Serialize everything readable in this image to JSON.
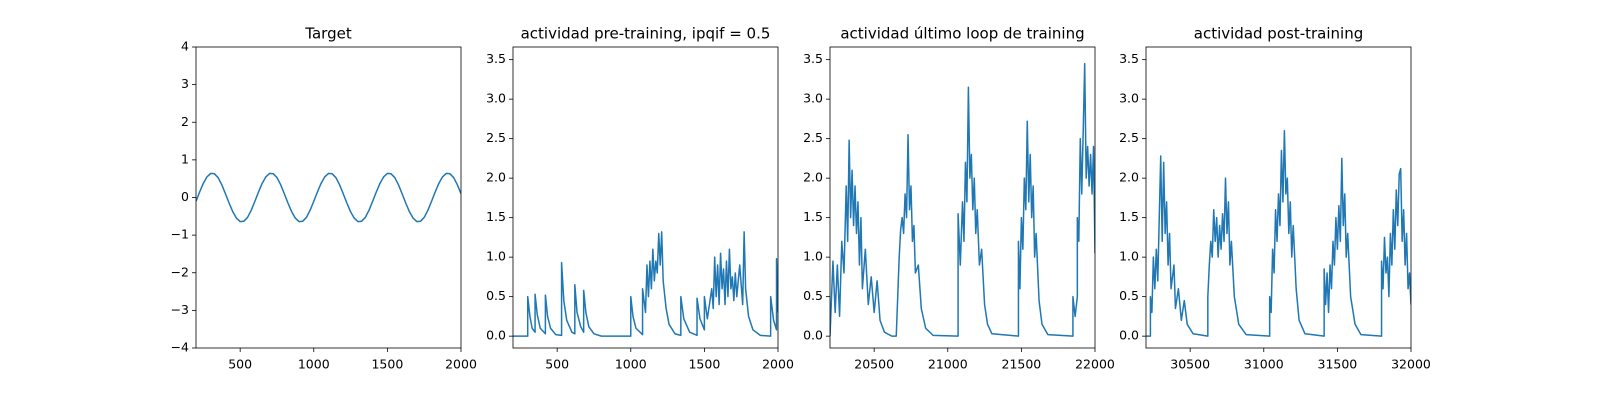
{
  "chart_data": [
    {
      "type": "line",
      "title": "Target",
      "x": [
        200,
        225,
        250,
        275,
        300,
        325,
        350,
        375,
        400,
        425,
        450,
        475,
        500,
        525,
        550,
        575,
        600,
        625,
        650,
        675,
        700,
        725,
        750,
        775,
        800,
        825,
        850,
        875,
        900,
        925,
        950,
        975,
        1000,
        1025,
        1050,
        1075,
        1100,
        1125,
        1150,
        1175,
        1200,
        1225,
        1250,
        1275,
        1300,
        1325,
        1350,
        1375,
        1400,
        1425,
        1450,
        1475,
        1500,
        1525,
        1550,
        1575,
        1600,
        1625,
        1650,
        1675,
        1700,
        1725,
        1750,
        1775,
        1800,
        1825,
        1850,
        1875,
        1900,
        1925,
        1950,
        1975,
        2000
      ],
      "series": [
        {
          "color": "#1f77b4",
          "values": [
            -0.1,
            0.15,
            0.38,
            0.55,
            0.64,
            0.63,
            0.53,
            0.34,
            0.1,
            -0.15,
            -0.38,
            -0.55,
            -0.64,
            -0.63,
            -0.53,
            -0.34,
            -0.1,
            0.15,
            0.38,
            0.55,
            0.64,
            0.63,
            0.53,
            0.34,
            0.1,
            -0.15,
            -0.38,
            -0.55,
            -0.64,
            -0.63,
            -0.53,
            -0.34,
            -0.1,
            0.15,
            0.38,
            0.55,
            0.64,
            0.63,
            0.53,
            0.34,
            0.1,
            -0.15,
            -0.38,
            -0.55,
            -0.64,
            -0.63,
            -0.53,
            -0.34,
            -0.1,
            0.15,
            0.38,
            0.55,
            0.64,
            0.63,
            0.53,
            0.34,
            0.1,
            -0.15,
            -0.38,
            -0.55,
            -0.64,
            -0.63,
            -0.53,
            -0.34,
            -0.1,
            0.15,
            0.38,
            0.55,
            0.64,
            0.63,
            0.53,
            0.34,
            0.1
          ]
        }
      ],
      "xlim": [
        200,
        2000
      ],
      "xticks": [
        500,
        1000,
        1500,
        2000
      ],
      "ylim": [
        -4,
        4
      ],
      "yticks": [
        {
          "value": -4,
          "label": "−4"
        },
        {
          "value": -3,
          "label": "−3"
        },
        {
          "value": -2,
          "label": "−2"
        },
        {
          "value": -1,
          "label": "−1"
        },
        0,
        1,
        2,
        3,
        4
      ]
    },
    {
      "type": "line",
      "title": "actividad pre-training, ipqif = 0.5",
      "x": [
        200,
        300,
        300,
        315,
        330,
        350,
        350,
        365,
        385,
        420,
        420,
        435,
        455,
        490,
        530,
        530,
        545,
        565,
        600,
        620,
        620,
        635,
        660,
        680,
        680,
        695,
        715,
        750,
        800,
        1000,
        1000,
        1015,
        1035,
        1080,
        1080,
        1100,
        1110,
        1120,
        1130,
        1140,
        1150,
        1160,
        1170,
        1180,
        1190,
        1200,
        1210,
        1220,
        1240,
        1260,
        1300,
        1340,
        1340,
        1360,
        1400,
        1450,
        1450,
        1470,
        1500,
        1500,
        1520,
        1550,
        1560,
        1570,
        1580,
        1590,
        1600,
        1610,
        1620,
        1630,
        1640,
        1650,
        1660,
        1670,
        1680,
        1690,
        1700,
        1710,
        1720,
        1740,
        1760,
        1770,
        1780,
        1800,
        1830,
        1880,
        1950,
        1950,
        1970,
        1990,
        1990,
        2000
      ],
      "series": [
        {
          "color": "#1f77b4",
          "values": [
            0,
            0,
            0.5,
            0.25,
            0.1,
            0.05,
            0.53,
            0.27,
            0.1,
            0.03,
            0.52,
            0.25,
            0.1,
            0.02,
            0.01,
            0.93,
            0.45,
            0.2,
            0.05,
            0.03,
            0.65,
            0.3,
            0.12,
            0.05,
            0.58,
            0.3,
            0.12,
            0.03,
            0,
            0,
            0.5,
            0.25,
            0.1,
            0.02,
            0.6,
            0.3,
            0.9,
            0.5,
            0.95,
            0.6,
            1.1,
            0.7,
            0.95,
            0.8,
            1.3,
            0.9,
            1.32,
            0.7,
            0.35,
            0.15,
            0.03,
            0.01,
            0.5,
            0.22,
            0.05,
            0.01,
            0.48,
            0.22,
            0.08,
            0.5,
            0.22,
            0.6,
            0.35,
            1.0,
            0.5,
            0.9,
            0.4,
            1.05,
            0.6,
            0.85,
            0.4,
            0.95,
            0.5,
            1.1,
            0.6,
            0.75,
            0.45,
            0.8,
            0.5,
            0.9,
            0.4,
            1.32,
            0.6,
            0.25,
            0.08,
            0.01,
            0,
            0.5,
            0.2,
            0.08,
            0.98,
            0.3
          ]
        }
      ],
      "xlim": [
        200,
        2000
      ],
      "xticks": [
        500,
        1000,
        1500,
        2000
      ],
      "ylim": [
        -0.15,
        3.66
      ],
      "yticks": [
        {
          "value": 0,
          "label": "0.0"
        },
        0.5,
        {
          "value": 1,
          "label": "1.0"
        },
        1.5,
        {
          "value": 2,
          "label": "2.0"
        },
        2.5,
        {
          "value": 3,
          "label": "3.0"
        },
        3.5
      ]
    },
    {
      "type": "line",
      "title": "actividad último loop de training",
      "x": [
        20200,
        20220,
        20235,
        20250,
        20265,
        20280,
        20295,
        20310,
        20320,
        20330,
        20340,
        20350,
        20360,
        20370,
        20380,
        20390,
        20400,
        20410,
        20420,
        20440,
        20460,
        20480,
        20500,
        20520,
        20540,
        20570,
        20620,
        20650,
        20660,
        20670,
        20680,
        20690,
        20700,
        20710,
        20720,
        20730,
        20740,
        20750,
        20760,
        20770,
        20780,
        20800,
        20820,
        20850,
        20900,
        21070,
        21070,
        21085,
        21100,
        21110,
        21120,
        21130,
        21140,
        21150,
        21160,
        21170,
        21180,
        21190,
        21200,
        21215,
        21230,
        21250,
        21270,
        21300,
        21480,
        21480,
        21490,
        21500,
        21510,
        21520,
        21530,
        21540,
        21550,
        21560,
        21570,
        21580,
        21590,
        21600,
        21620,
        21640,
        21680,
        21850,
        21850,
        21865,
        21880,
        21880,
        21890,
        21900,
        21910,
        21920,
        21930,
        21940,
        21950,
        21960,
        21970,
        21980,
        21990,
        22000
      ],
      "series": [
        {
          "color": "#1f77b4",
          "values": [
            0,
            0.95,
            0.3,
            0.9,
            0.25,
            1.2,
            0.8,
            1.9,
            1.2,
            2.48,
            1.5,
            2.1,
            1.4,
            1.9,
            1.3,
            1.7,
            0.9,
            1.5,
            0.6,
            1.1,
            0.4,
            0.75,
            0.3,
            0.7,
            0.2,
            0.05,
            0,
            0,
            0.5,
            1.0,
            1.35,
            1.5,
            1.3,
            1.8,
            1.5,
            2.55,
            1.6,
            1.9,
            1.2,
            1.4,
            0.8,
            0.9,
            0.35,
            0.1,
            0.01,
            0,
            1.55,
            0.9,
            1.7,
            1.2,
            2.2,
            1.7,
            3.15,
            2.0,
            2.3,
            1.6,
            2.0,
            1.3,
            1.6,
            0.9,
            1.1,
            0.4,
            0.15,
            0.03,
            0,
            1.2,
            0.6,
            1.5,
            1.1,
            2.0,
            1.6,
            2.72,
            1.7,
            2.3,
            1.5,
            1.9,
            1.0,
            1.3,
            0.45,
            0.15,
            0.02,
            0,
            0.5,
            0.25,
            0.5,
            1.5,
            1.2,
            2.5,
            1.8,
            2.6,
            3.45,
            2.0,
            2.4,
            1.9,
            2.3,
            1.8,
            2.4,
            1.05
          ]
        }
      ],
      "xlim": [
        20200,
        22000
      ],
      "xticks": [
        20500,
        21000,
        21500,
        22000
      ],
      "ylim": [
        -0.15,
        3.66
      ],
      "yticks": [
        {
          "value": 0,
          "label": "0.0"
        },
        0.5,
        {
          "value": 1,
          "label": "1.0"
        },
        1.5,
        {
          "value": 2,
          "label": "2.0"
        },
        2.5,
        {
          "value": 3,
          "label": "3.0"
        },
        3.5
      ]
    },
    {
      "type": "line",
      "title": "actividad post-training",
      "x": [
        30200,
        30230,
        30230,
        30240,
        30250,
        30260,
        30270,
        30280,
        30290,
        30300,
        30310,
        30320,
        30330,
        30340,
        30350,
        30360,
        30370,
        30390,
        30400,
        30420,
        30440,
        30460,
        30480,
        30520,
        30620,
        30620,
        30630,
        30640,
        30650,
        30660,
        30670,
        30680,
        30690,
        30700,
        30710,
        30720,
        30730,
        30740,
        30750,
        30760,
        30770,
        30780,
        30800,
        30830,
        30880,
        31040,
        31040,
        31050,
        31060,
        31070,
        31080,
        31090,
        31100,
        31110,
        31120,
        31130,
        31140,
        31150,
        31160,
        31170,
        31180,
        31190,
        31200,
        31220,
        31240,
        31280,
        31410,
        31410,
        31420,
        31430,
        31440,
        31450,
        31460,
        31470,
        31480,
        31490,
        31500,
        31510,
        31520,
        31530,
        31540,
        31550,
        31560,
        31570,
        31590,
        31620,
        31660,
        31800,
        31800,
        31810,
        31820,
        31830,
        31840,
        31850,
        31860,
        31870,
        31880,
        31890,
        31900,
        31910,
        31920,
        31930,
        31940,
        31950,
        31960,
        31970,
        31980,
        31990,
        32000
      ],
      "series": [
        {
          "color": "#1f77b4",
          "values": [
            0,
            0,
            0.5,
            0.3,
            1.0,
            0.6,
            1.1,
            0.7,
            1.5,
            2.28,
            1.2,
            2.2,
            1.3,
            1.7,
            0.9,
            1.3,
            0.6,
            0.9,
            0.35,
            0.6,
            0.2,
            0.45,
            0.15,
            0.03,
            0,
            0.5,
            0.9,
            1.2,
            1.0,
            1.6,
            1.2,
            1.5,
            1.0,
            1.4,
            1.1,
            1.55,
            1.2,
            2.0,
            1.3,
            1.7,
            0.9,
            1.2,
            0.5,
            0.15,
            0.02,
            0,
            0.5,
            0.3,
            1.1,
            0.8,
            1.6,
            1.2,
            1.8,
            1.4,
            2.35,
            1.7,
            2.6,
            1.8,
            2.0,
            1.3,
            1.7,
            1.0,
            1.4,
            0.6,
            0.2,
            0.03,
            0,
            0.85,
            0.4,
            0.8,
            0.3,
            0.9,
            0.6,
            1.2,
            0.9,
            1.5,
            1.1,
            1.65,
            1.2,
            2.25,
            1.4,
            1.8,
            1.0,
            1.3,
            0.5,
            0.15,
            0.02,
            0,
            0.95,
            0.6,
            1.25,
            0.8,
            1.0,
            0.5,
            1.3,
            0.9,
            1.6,
            1.1,
            1.85,
            1.4,
            2.05,
            2.12,
            1.2,
            1.6,
            0.9,
            1.3,
            0.6,
            0.8,
            0.4
          ]
        }
      ],
      "xlim": [
        30200,
        32000
      ],
      "xticks": [
        30500,
        31000,
        31500,
        32000
      ],
      "ylim": [
        -0.15,
        3.66
      ],
      "yticks": [
        {
          "value": 0,
          "label": "0.0"
        },
        0.5,
        {
          "value": 1,
          "label": "1.0"
        },
        1.5,
        {
          "value": 2,
          "label": "2.0"
        },
        2.5,
        {
          "value": 3,
          "label": "3.0"
        },
        3.5
      ]
    }
  ]
}
